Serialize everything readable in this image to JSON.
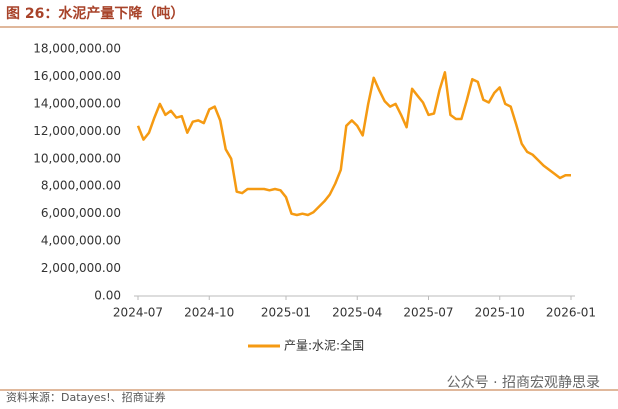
{
  "chart_data": {
    "type": "line",
    "title": "图 26：水泥产量下降（吨）",
    "source": "资料来源：Datayes!、招商证券",
    "watermark": "公众号 · 招商宏观静思录",
    "categories": [
      "2024-07",
      null,
      null,
      null,
      null,
      null,
      null,
      null,
      null,
      null,
      null,
      null,
      null,
      "2024-10",
      null,
      null,
      null,
      null,
      null,
      null,
      null,
      null,
      null,
      null,
      null,
      null,
      null,
      "2025-01",
      null,
      null,
      null,
      null,
      null,
      null,
      null,
      null,
      null,
      null,
      null,
      null,
      "2025-04",
      null,
      null,
      null,
      null,
      null,
      null,
      null,
      null,
      null,
      null,
      null,
      null,
      "2025-07",
      null,
      null,
      null,
      null,
      null,
      null,
      null,
      null,
      null,
      null,
      null,
      null,
      "2025-10",
      null,
      null,
      null,
      null,
      null,
      null,
      null,
      null,
      null,
      null,
      null,
      null,
      "2026-01"
    ],
    "series": [
      {
        "name": "产量:水泥:全国",
        "color": "#f59a12",
        "values": [
          12400000,
          11400000,
          11900000,
          13000000,
          14000000,
          13200000,
          13500000,
          13000000,
          13100000,
          11900000,
          12700000,
          12800000,
          12600000,
          13600000,
          13800000,
          12800000,
          10700000,
          10000000,
          7600000,
          7500000,
          7800000,
          7800000,
          7800000,
          7800000,
          7700000,
          7800000,
          7700000,
          7200000,
          6000000,
          5900000,
          6000000,
          5900000,
          6100000,
          6500000,
          6900000,
          7400000,
          8200000,
          9200000,
          12400000,
          12800000,
          12400000,
          11700000,
          14000000,
          15900000,
          15000000,
          14200000,
          13800000,
          14000000,
          13200000,
          12300000,
          15100000,
          14600000,
          14100000,
          13200000,
          13300000,
          15000000,
          16300000,
          13200000,
          12900000,
          12900000,
          14300000,
          15800000,
          15600000,
          14300000,
          14100000,
          14800000,
          15200000,
          14000000,
          13800000,
          12500000,
          11100000,
          10500000,
          10300000,
          9900000,
          9500000,
          9200000,
          8900000,
          8600000,
          8800000,
          8800000
        ]
      }
    ],
    "ylim": [
      0,
      18000000
    ],
    "yticks": [
      {
        "value": 0,
        "label": "0.00"
      },
      {
        "value": 2000000,
        "label": "2,000,000.00"
      },
      {
        "value": 4000000,
        "label": "4,000,000.00"
      },
      {
        "value": 6000000,
        "label": "6,000,000.00"
      },
      {
        "value": 8000000,
        "label": "8,000,000.00"
      },
      {
        "value": 10000000,
        "label": "10,000,000.00"
      },
      {
        "value": 12000000,
        "label": "12,000,000.00"
      },
      {
        "value": 14000000,
        "label": "14,000,000.00"
      },
      {
        "value": 16000000,
        "label": "16,000,000.00"
      },
      {
        "value": 18000000,
        "label": "18,000,000.00"
      }
    ],
    "grid": false,
    "legend": "bottom"
  }
}
